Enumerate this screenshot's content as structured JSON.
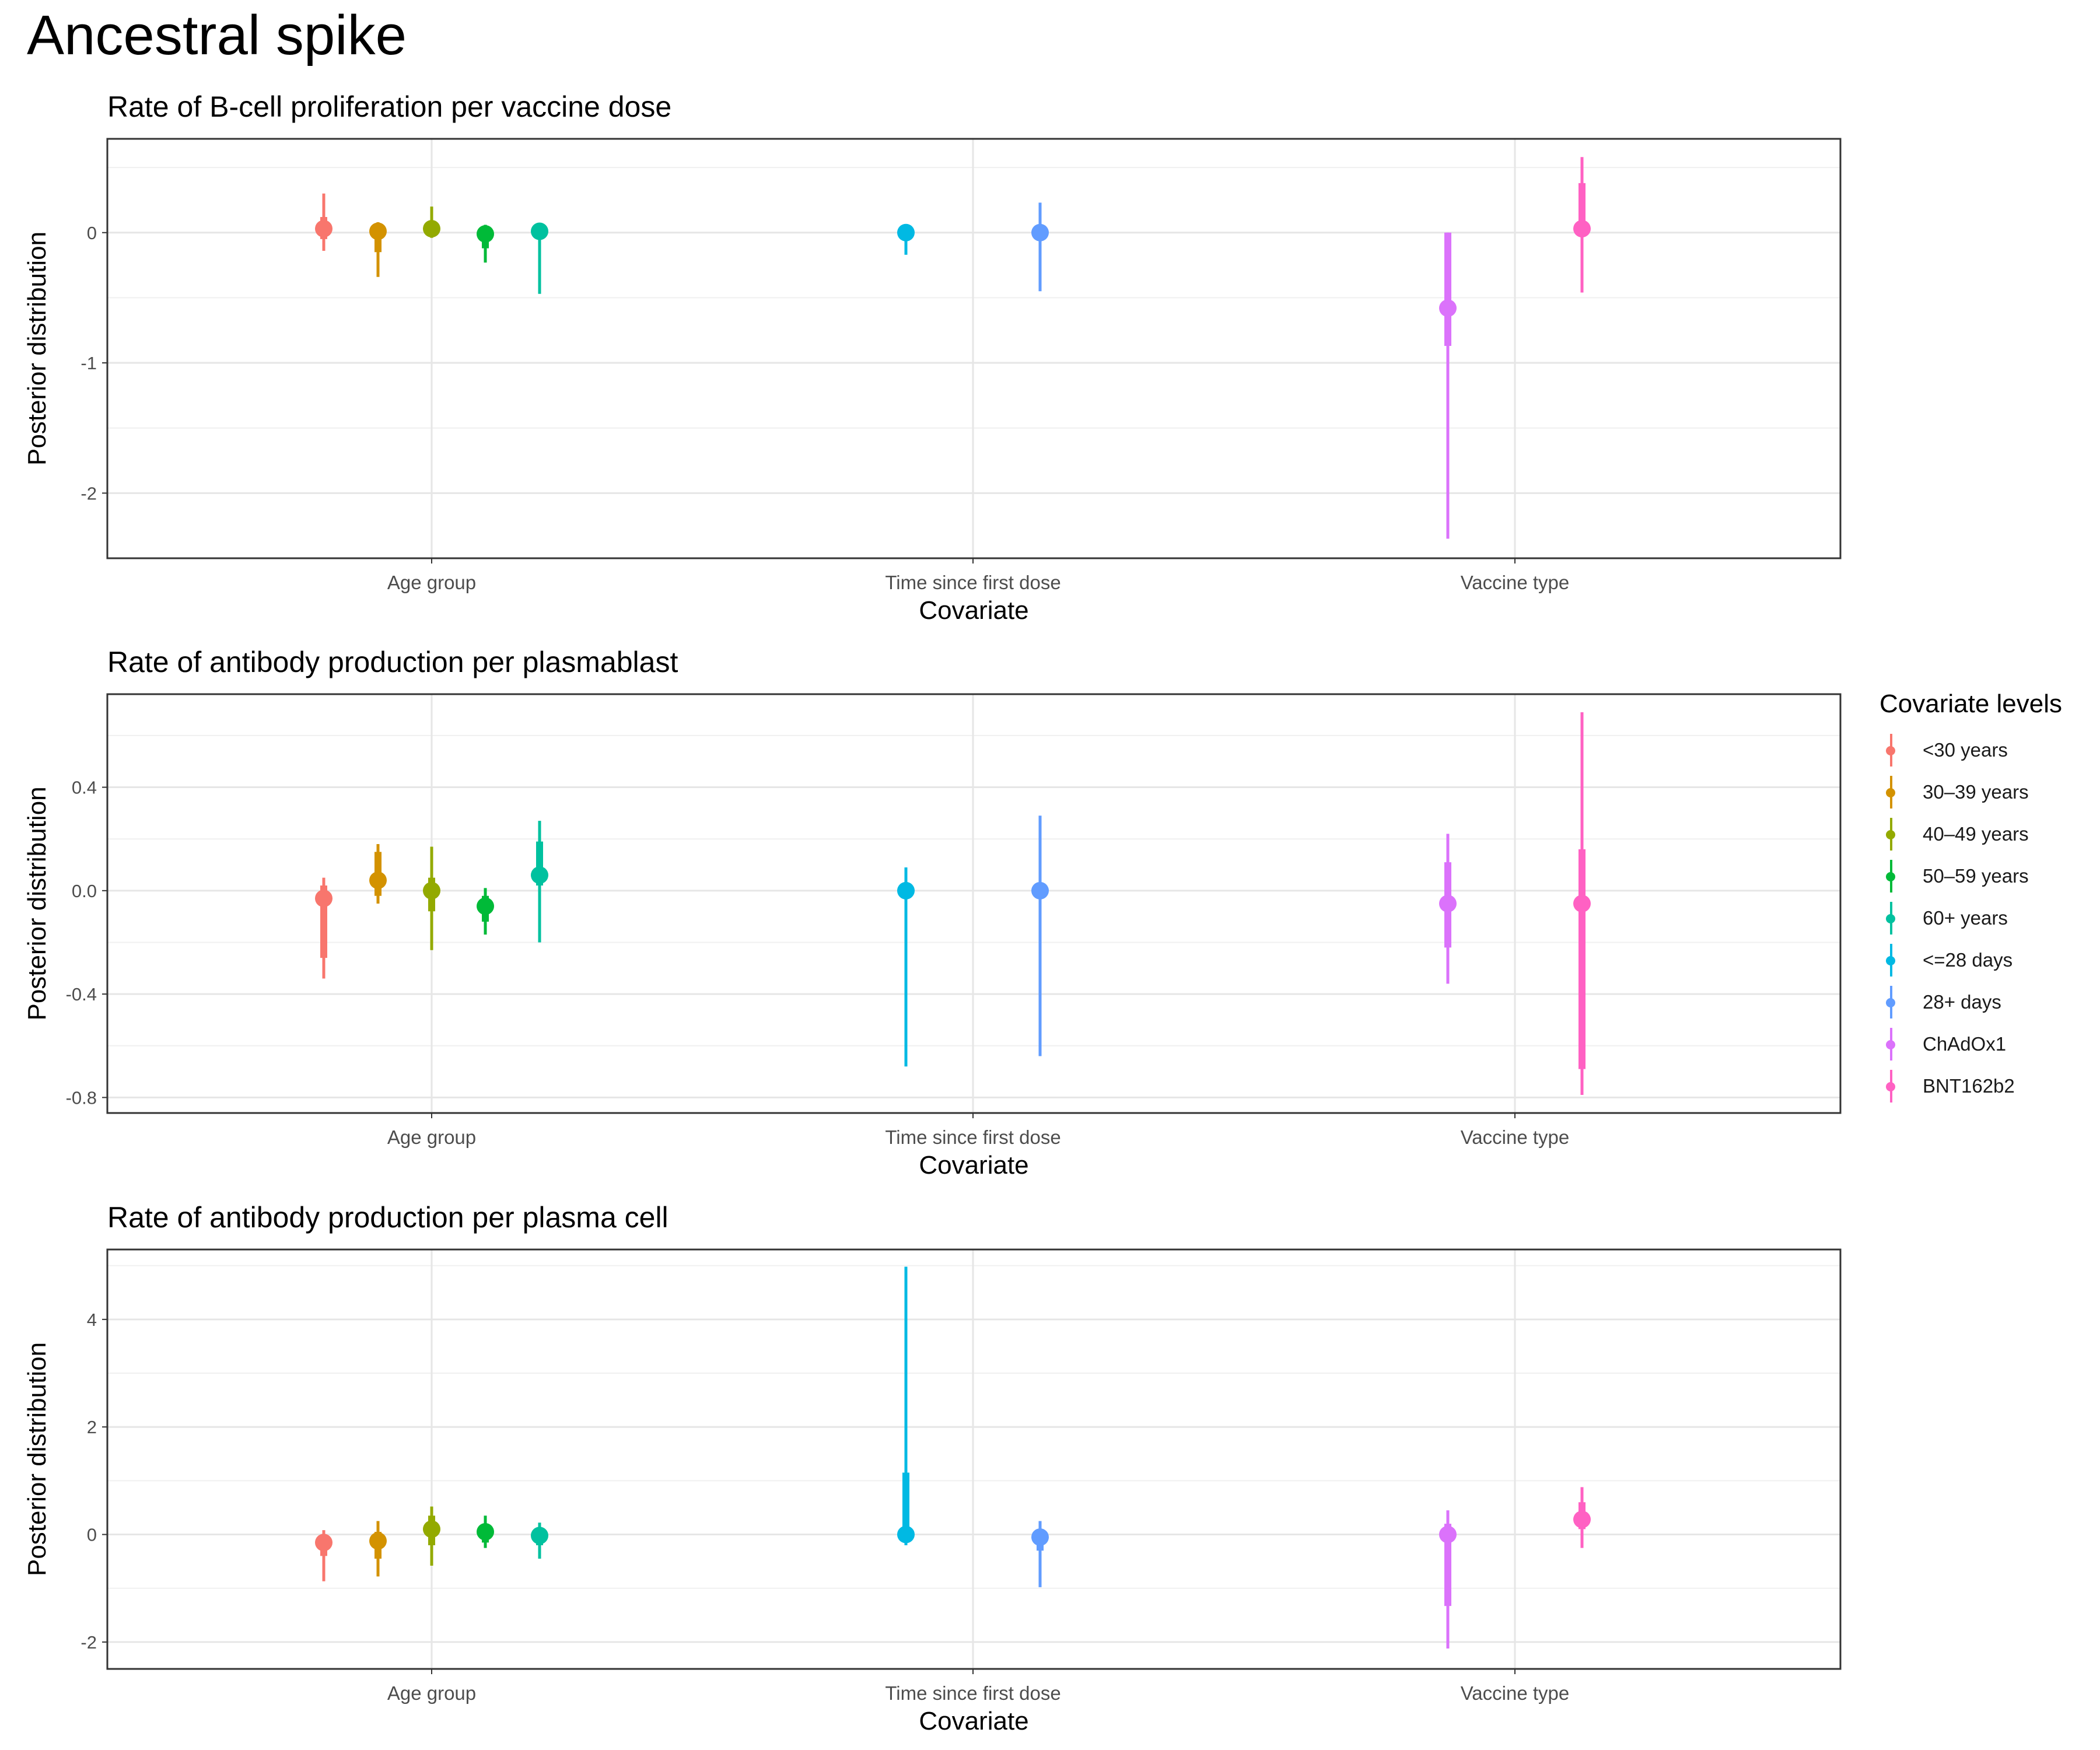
{
  "title": "Ancestral spike",
  "legend": {
    "title": "Covariate levels",
    "items": [
      {
        "label": "<30 years",
        "color": "#F8766D"
      },
      {
        "label": "30–39 years",
        "color": "#D39200"
      },
      {
        "label": "40–49 years",
        "color": "#93AA00"
      },
      {
        "label": "50–59 years",
        "color": "#00BA38"
      },
      {
        "label": "60+ years",
        "color": "#00C19F"
      },
      {
        "label": "<=28 days",
        "color": "#00B9E3"
      },
      {
        "label": "28+ days",
        "color": "#619CFF"
      },
      {
        "label": "ChAdOx1",
        "color": "#DB72FB"
      },
      {
        "label": "BNT162b2",
        "color": "#FF61C3"
      }
    ]
  },
  "chart_data": [
    {
      "type": "pointinterval",
      "title": "Rate of B-cell proliferation per vaccine dose",
      "xlabel": "Covariate",
      "ylabel": "Posterior distribution",
      "categories": [
        "Age group",
        "Time since first dose",
        "Vaccine type"
      ],
      "ylim": [
        -2.5,
        0.72
      ],
      "yticks": [
        -2,
        -1,
        0
      ],
      "yticklabels": [
        "-2",
        "-1",
        "0"
      ],
      "grid": true,
      "points": [
        {
          "category": "Age group",
          "level": "<30 years",
          "median": 0.03,
          "inner": [
            -0.05,
            0.12
          ],
          "outer": [
            -0.14,
            0.3
          ]
        },
        {
          "category": "Age group",
          "level": "30–39 years",
          "median": 0.01,
          "inner": [
            -0.15,
            0.06
          ],
          "outer": [
            -0.34,
            0.08
          ]
        },
        {
          "category": "Age group",
          "level": "40–49 years",
          "median": 0.03,
          "inner": [
            -0.02,
            0.08
          ],
          "outer": [
            -0.04,
            0.2
          ]
        },
        {
          "category": "Age group",
          "level": "50–59 years",
          "median": -0.01,
          "inner": [
            -0.12,
            0.04
          ],
          "outer": [
            -0.23,
            0.06
          ]
        },
        {
          "category": "Age group",
          "level": "60+ years",
          "median": 0.01,
          "inner": [
            -0.03,
            0.05
          ],
          "outer": [
            -0.47,
            0.07
          ]
        },
        {
          "category": "Time since first dose",
          "level": "<=28 days",
          "median": 0.0,
          "inner": [
            -0.05,
            0.02
          ],
          "outer": [
            -0.17,
            0.04
          ]
        },
        {
          "category": "Time since first dose",
          "level": "28+ days",
          "median": 0.0,
          "inner": [
            -0.03,
            0.02
          ],
          "outer": [
            -0.45,
            0.23
          ]
        },
        {
          "category": "Vaccine type",
          "level": "ChAdOx1",
          "median": -0.58,
          "inner": [
            -0.87,
            0.0
          ],
          "outer": [
            -2.35,
            0.0
          ]
        },
        {
          "category": "Vaccine type",
          "level": "BNT162b2",
          "median": 0.03,
          "inner": [
            -0.02,
            0.38
          ],
          "outer": [
            -0.46,
            0.58
          ]
        }
      ]
    },
    {
      "type": "pointinterval",
      "title": "Rate of antibody production per plasmablast",
      "xlabel": "Covariate",
      "ylabel": "Posterior distribution",
      "categories": [
        "Age group",
        "Time since first dose",
        "Vaccine type"
      ],
      "ylim": [
        -0.86,
        0.76
      ],
      "yticks": [
        -0.8,
        -0.4,
        0.0,
        0.4
      ],
      "yticklabels": [
        "-0.8",
        "-0.4",
        "0.0",
        "0.4"
      ],
      "grid": true,
      "points": [
        {
          "category": "Age group",
          "level": "<30 years",
          "median": -0.03,
          "inner": [
            -0.26,
            0.02
          ],
          "outer": [
            -0.34,
            0.05
          ]
        },
        {
          "category": "Age group",
          "level": "30–39 years",
          "median": 0.04,
          "inner": [
            -0.02,
            0.15
          ],
          "outer": [
            -0.05,
            0.18
          ]
        },
        {
          "category": "Age group",
          "level": "40–49 years",
          "median": 0.0,
          "inner": [
            -0.08,
            0.05
          ],
          "outer": [
            -0.23,
            0.17
          ]
        },
        {
          "category": "Age group",
          "level": "50–59 years",
          "median": -0.06,
          "inner": [
            -0.12,
            -0.02
          ],
          "outer": [
            -0.17,
            0.01
          ]
        },
        {
          "category": "Age group",
          "level": "60+ years",
          "median": 0.06,
          "inner": [
            0.02,
            0.19
          ],
          "outer": [
            -0.2,
            0.27
          ]
        },
        {
          "category": "Time since first dose",
          "level": "<=28 days",
          "median": 0.0,
          "inner": [
            -0.02,
            0.02
          ],
          "outer": [
            -0.68,
            0.09
          ]
        },
        {
          "category": "Time since first dose",
          "level": "28+ days",
          "median": 0.0,
          "inner": [
            -0.02,
            0.02
          ],
          "outer": [
            -0.64,
            0.29
          ]
        },
        {
          "category": "Vaccine type",
          "level": "ChAdOx1",
          "median": -0.05,
          "inner": [
            -0.22,
            0.11
          ],
          "outer": [
            -0.36,
            0.22
          ]
        },
        {
          "category": "Vaccine type",
          "level": "BNT162b2",
          "median": -0.05,
          "inner": [
            -0.69,
            0.16
          ],
          "outer": [
            -0.79,
            0.69
          ]
        }
      ]
    },
    {
      "type": "pointinterval",
      "title": "Rate of antibody production per plasma cell",
      "xlabel": "Covariate",
      "ylabel": "Posterior distribution",
      "categories": [
        "Age group",
        "Time since first dose",
        "Vaccine type"
      ],
      "ylim": [
        -2.5,
        5.3
      ],
      "yticks": [
        -2,
        0,
        2,
        4
      ],
      "yticklabels": [
        "-2",
        "0",
        "2",
        "4"
      ],
      "grid": true,
      "points": [
        {
          "category": "Age group",
          "level": "<30 years",
          "median": -0.15,
          "inner": [
            -0.4,
            0.0
          ],
          "outer": [
            -0.87,
            0.08
          ]
        },
        {
          "category": "Age group",
          "level": "30–39 years",
          "median": -0.12,
          "inner": [
            -0.45,
            0.05
          ],
          "outer": [
            -0.78,
            0.25
          ]
        },
        {
          "category": "Age group",
          "level": "40–49 years",
          "median": 0.1,
          "inner": [
            -0.2,
            0.35
          ],
          "outer": [
            -0.58,
            0.52
          ]
        },
        {
          "category": "Age group",
          "level": "50–59 years",
          "median": 0.05,
          "inner": [
            -0.15,
            0.2
          ],
          "outer": [
            -0.25,
            0.35
          ]
        },
        {
          "category": "Age group",
          "level": "60+ years",
          "median": -0.02,
          "inner": [
            -0.2,
            0.1
          ],
          "outer": [
            -0.45,
            0.22
          ]
        },
        {
          "category": "Time since first dose",
          "level": "<=28 days",
          "median": 0.0,
          "inner": [
            -0.1,
            1.15
          ],
          "outer": [
            -0.2,
            4.98
          ]
        },
        {
          "category": "Time since first dose",
          "level": "28+ days",
          "median": -0.05,
          "inner": [
            -0.3,
            0.1
          ],
          "outer": [
            -0.98,
            0.25
          ]
        },
        {
          "category": "Vaccine type",
          "level": "ChAdOx1",
          "median": 0.0,
          "inner": [
            -1.33,
            0.2
          ],
          "outer": [
            -2.12,
            0.45
          ]
        },
        {
          "category": "Vaccine type",
          "level": "BNT162b2",
          "median": 0.28,
          "inner": [
            0.1,
            0.6
          ],
          "outer": [
            -0.25,
            0.88
          ]
        }
      ]
    }
  ]
}
